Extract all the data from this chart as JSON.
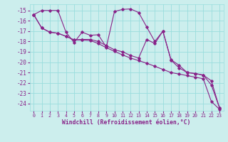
{
  "bg_color": "#cceeed",
  "grid_color": "#99dddd",
  "line_color": "#882288",
  "xlabel": "Windchill (Refroidissement éolien,°C)",
  "xlim": [
    -0.5,
    23.5
  ],
  "ylim": [
    -24.7,
    -14.4
  ],
  "yticks": [
    -15,
    -16,
    -17,
    -18,
    -19,
    -20,
    -21,
    -22,
    -23,
    -24
  ],
  "xticks": [
    0,
    1,
    2,
    3,
    4,
    5,
    6,
    7,
    8,
    9,
    10,
    11,
    12,
    13,
    14,
    15,
    16,
    17,
    18,
    19,
    20,
    21,
    22,
    23
  ],
  "series1_x": [
    0,
    1,
    2,
    3,
    4,
    5,
    6,
    7,
    8,
    9,
    10,
    11,
    12,
    13,
    14,
    15,
    16,
    17,
    18,
    19,
    20,
    21,
    22,
    23
  ],
  "series1_y": [
    -15.4,
    -15.0,
    -15.0,
    -15.0,
    -17.1,
    -18.1,
    -17.1,
    -17.4,
    -17.35,
    -18.55,
    -15.1,
    -14.9,
    -14.85,
    -15.2,
    -16.6,
    -18.0,
    -17.0,
    -19.75,
    -20.3,
    -21.0,
    -21.1,
    -21.25,
    -21.8,
    -24.4
  ],
  "series2_x": [
    0,
    1,
    2,
    3,
    4,
    5,
    6,
    7,
    8,
    9,
    10,
    11,
    12,
    13,
    14,
    15,
    16,
    17,
    18,
    19,
    20,
    21,
    22,
    23
  ],
  "series2_y": [
    -15.4,
    -16.7,
    -17.1,
    -17.2,
    -17.5,
    -17.85,
    -17.8,
    -17.8,
    -18.0,
    -18.4,
    -18.8,
    -19.0,
    -19.35,
    -19.6,
    -17.8,
    -18.2,
    -17.0,
    -19.8,
    -20.55,
    -21.0,
    -21.1,
    -21.25,
    -22.2,
    -24.4
  ],
  "series3_x": [
    0,
    1,
    2,
    3,
    4,
    5,
    6,
    7,
    8,
    9,
    10,
    11,
    12,
    13,
    14,
    15,
    16,
    17,
    18,
    19,
    20,
    21,
    22,
    23
  ],
  "series3_y": [
    -15.4,
    -16.7,
    -17.1,
    -17.2,
    -17.5,
    -17.85,
    -17.85,
    -17.9,
    -18.2,
    -18.6,
    -18.95,
    -19.3,
    -19.6,
    -19.85,
    -20.1,
    -20.4,
    -20.7,
    -21.0,
    -21.15,
    -21.3,
    -21.45,
    -21.6,
    -23.8,
    -24.55
  ]
}
